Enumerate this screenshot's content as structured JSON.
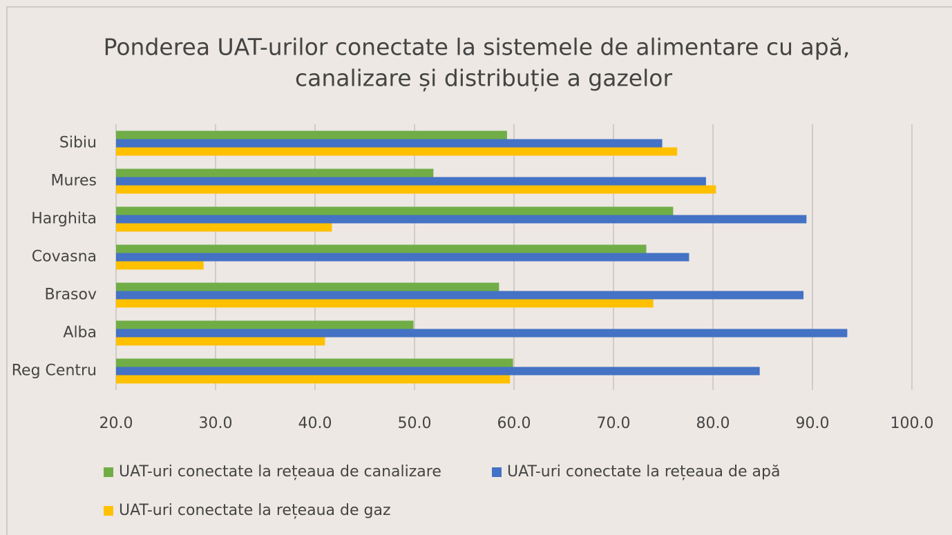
{
  "chart_data": {
    "type": "hbar",
    "title": [
      "Ponderea UAT-urilor conectate la sistemele de alimentare cu apă,",
      "canalizare și distribuție a gazelor"
    ],
    "categories": [
      "Sibiu",
      "Mures",
      "Harghita",
      "Covasna",
      "Brasov",
      "Alba",
      "Reg Centru"
    ],
    "series": [
      {
        "name": "UAT-uri conectate la rețeaua de canalizare",
        "color": "#70ad47",
        "values": [
          59.3,
          51.9,
          76.0,
          73.3,
          58.5,
          49.9,
          59.9
        ]
      },
      {
        "name": "UAT-uri conectate la rețeaua de apă",
        "color": "#4472c4",
        "values": [
          74.9,
          79.3,
          89.4,
          77.6,
          89.1,
          93.5,
          84.7
        ]
      },
      {
        "name": "UAT-uri conectate la rețeaua de gaz",
        "color": "#ffc000",
        "values": [
          76.4,
          80.3,
          41.7,
          28.8,
          74.0,
          41.0,
          59.6
        ]
      }
    ],
    "xlim": [
      20,
      100
    ],
    "xticks": [
      {
        "value": 20,
        "label": "20.0"
      },
      {
        "value": 30,
        "label": "30.0"
      },
      {
        "value": 40,
        "label": "40.0"
      },
      {
        "value": 50,
        "label": "50.0"
      },
      {
        "value": 60,
        "label": "60.0"
      },
      {
        "value": 70,
        "label": "70.0"
      },
      {
        "value": 80,
        "label": "80.0"
      },
      {
        "value": 90,
        "label": "90.0"
      },
      {
        "value": 100,
        "label": "100.0"
      }
    ],
    "grid": true,
    "legend": "bottom"
  }
}
